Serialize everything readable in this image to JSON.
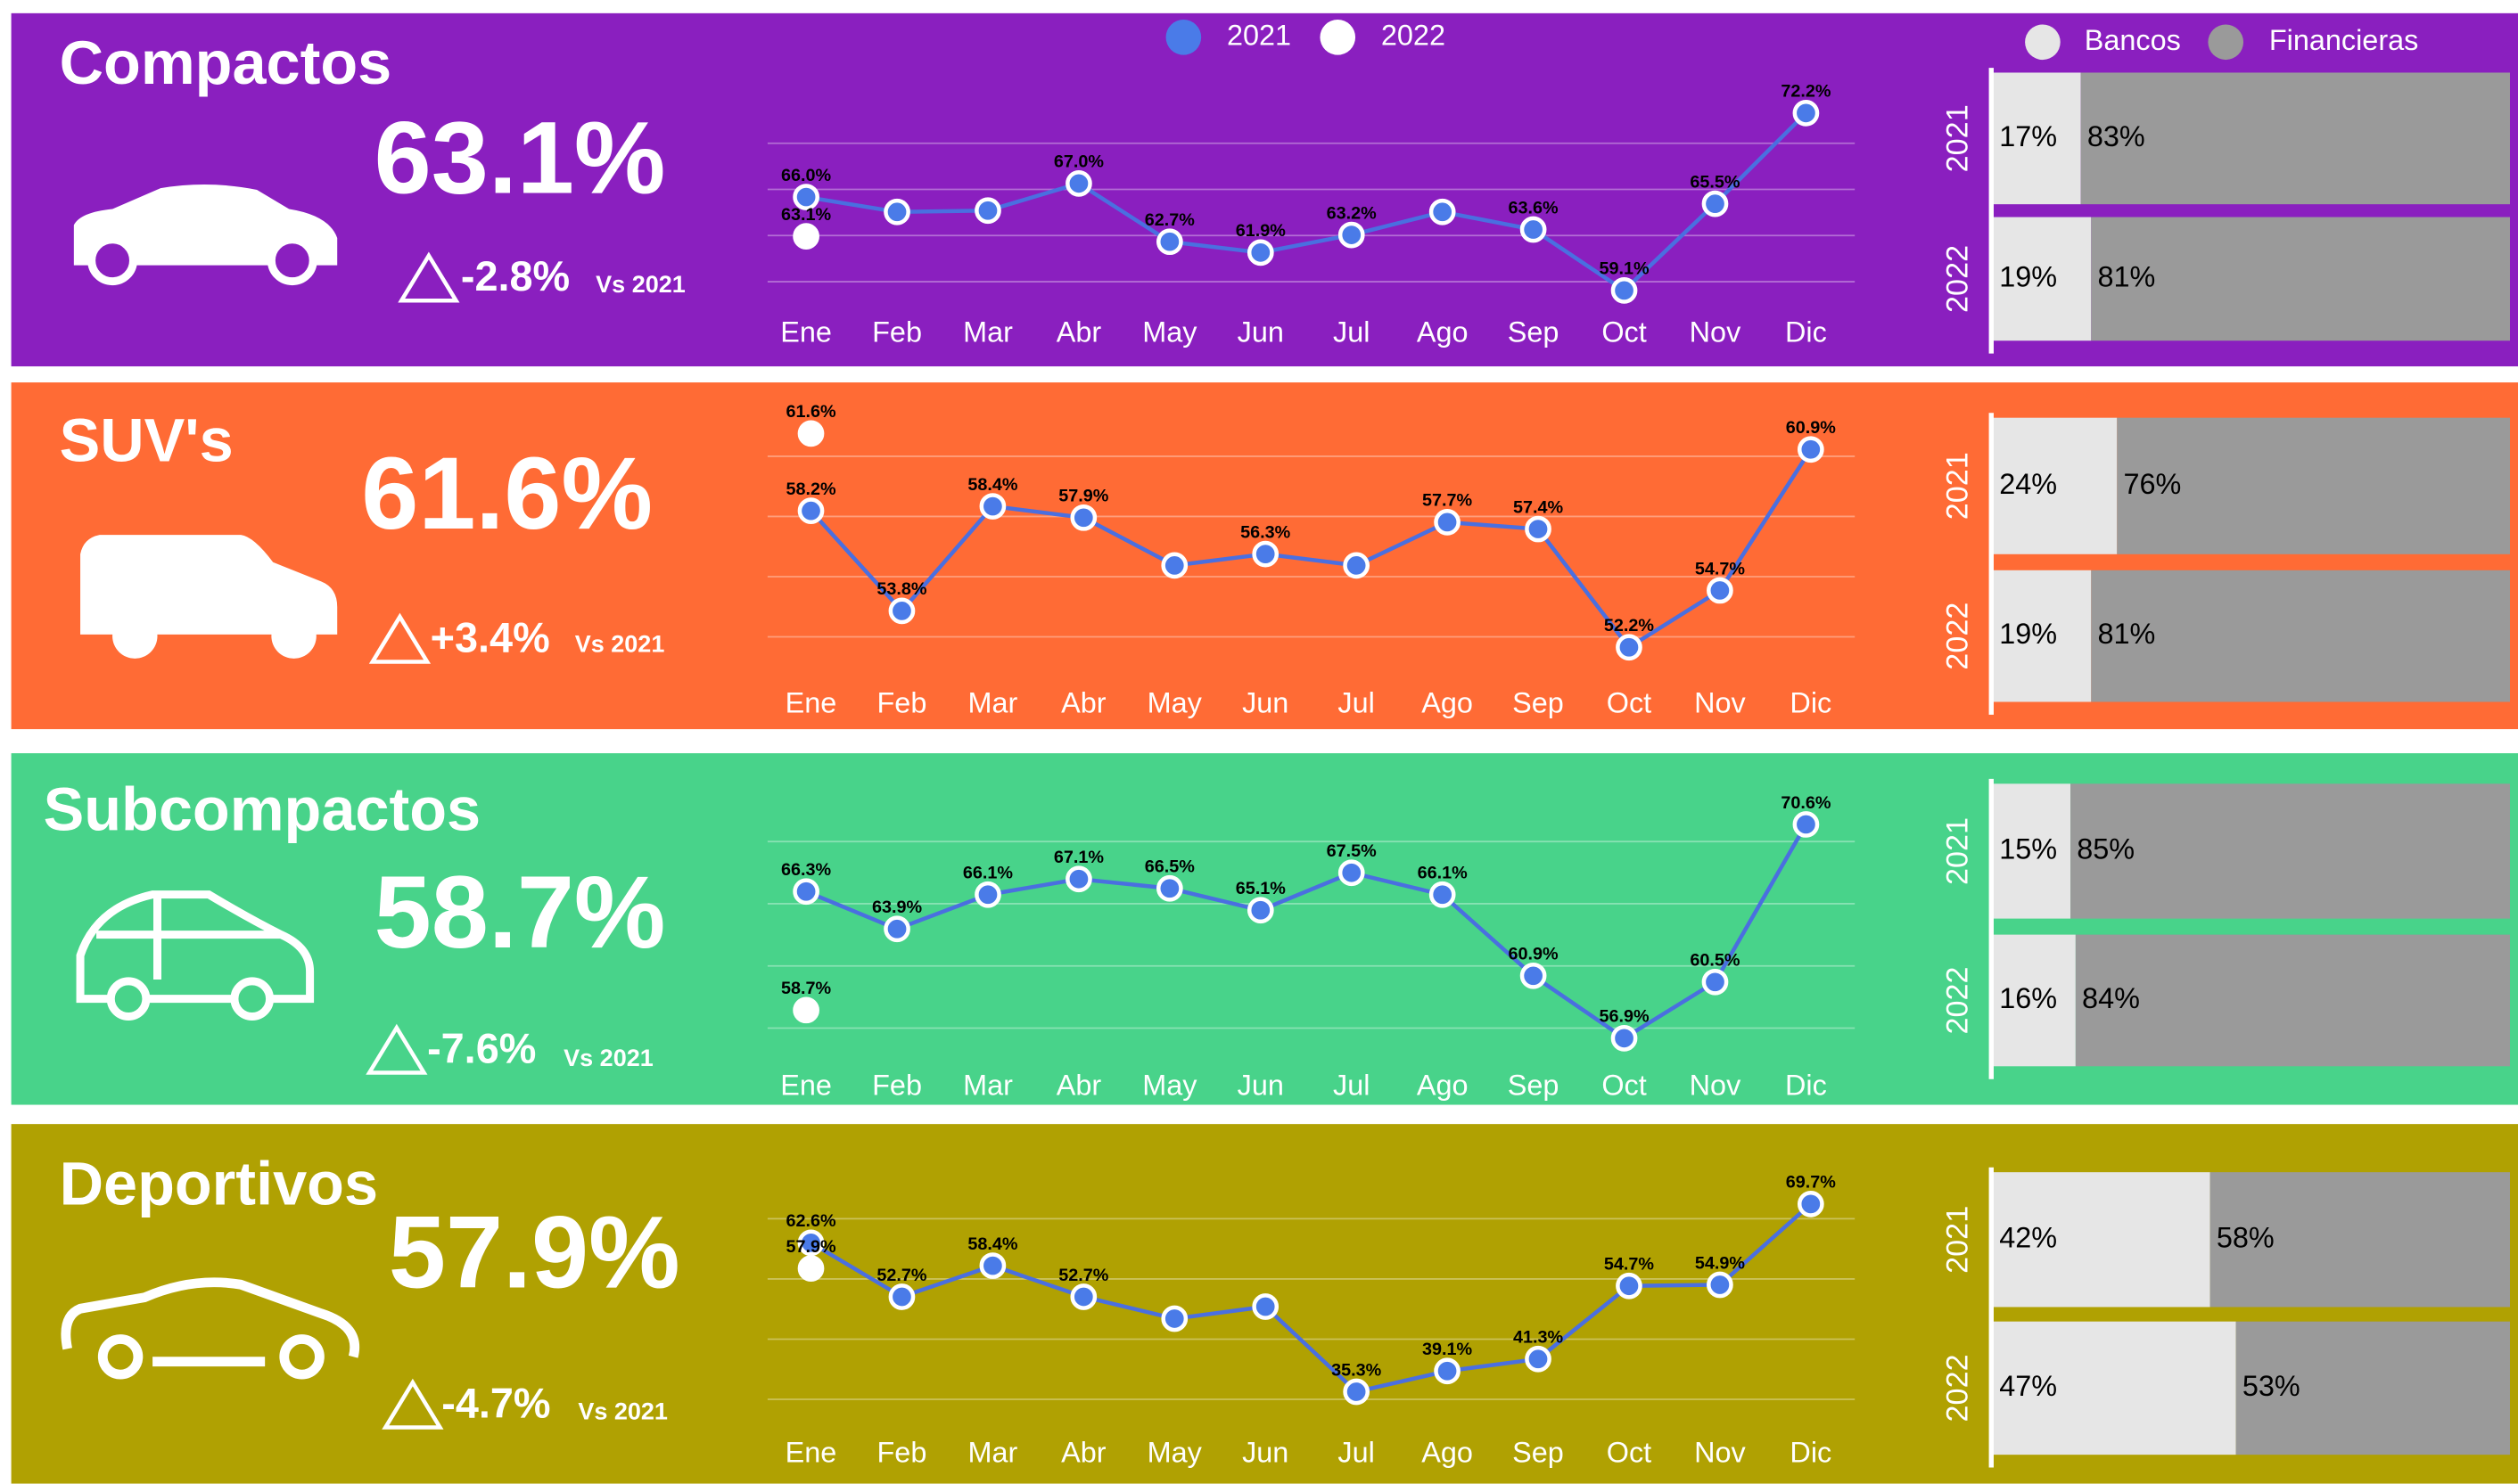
{
  "legend": {
    "line": [
      {
        "name": "2021",
        "color": "#4a7be8"
      },
      {
        "name": "2022",
        "color": "#ffffff"
      }
    ],
    "bar": [
      {
        "name": "Bancos",
        "color": "#e6e6e6"
      },
      {
        "name": "Financieras",
        "color": "#9a9a9a"
      }
    ]
  },
  "panels": [
    {
      "title": "Compactos",
      "color": "#8a1fbf",
      "kpi": "63.1%",
      "delta": "-2.8%",
      "vs": "Vs 2021",
      "chart_data": {
        "type": "line",
        "categories": [
          "Ene",
          "Feb",
          "Mar",
          "Abr",
          "May",
          "Jun",
          "Jul",
          "Ago",
          "Sep",
          "Oct",
          "Nov",
          "Dic"
        ],
        "ylim": [
          58,
          74
        ],
        "series": [
          {
            "values": [
              66.0,
              64.9,
              65.0,
              67.0,
              62.7,
              61.9,
              63.2,
              64.9,
              63.6,
              59.1,
              65.5,
              72.2
            ],
            "value_labels": [
              "66.0%",
              null,
              null,
              "67.0%",
              "62.7%",
              "61.9%",
              "63.2%",
              null,
              "63.6%",
              "59.1%",
              "65.5%",
              "72.2%"
            ]
          },
          {
            "values": [
              63.1,
              null,
              null,
              null,
              null,
              null,
              null,
              null,
              null,
              null,
              null,
              null
            ],
            "value_labels": [
              "63.1%",
              null,
              null,
              null,
              null,
              null,
              null,
              null,
              null,
              null,
              null,
              null
            ]
          }
        ]
      },
      "bar_chart": {
        "type": "stacked-bar",
        "categories": [
          "2021",
          "2022"
        ],
        "xlim": [
          0,
          100
        ],
        "series": [
          {
            "values": [
              17,
              19
            ],
            "value_labels": [
              "17%",
              "19%"
            ]
          },
          {
            "values": [
              83,
              81
            ],
            "value_labels": [
              "83%",
              "81%"
            ]
          }
        ]
      }
    },
    {
      "title": "SUV's",
      "color": "#ff6b35",
      "kpi": "61.6%",
      "delta": "+3.4%",
      "vs": "Vs 2021",
      "chart_data": {
        "type": "line",
        "categories": [
          "Ene",
          "Feb",
          "Mar",
          "Abr",
          "May",
          "Jun",
          "Jul",
          "Ago",
          "Sep",
          "Oct",
          "Nov",
          "Dic"
        ],
        "ylim": [
          51,
          63
        ],
        "series": [
          {
            "values": [
              58.2,
              53.8,
              58.4,
              57.9,
              55.8,
              56.3,
              55.8,
              57.7,
              57.4,
              52.2,
              54.7,
              60.9
            ],
            "value_labels": [
              "58.2%",
              "53.8%",
              "58.4%",
              "57.9%",
              null,
              "56.3%",
              null,
              "57.7%",
              "57.4%",
              "52.2%",
              "54.7%",
              "60.9%"
            ]
          },
          {
            "values": [
              61.6,
              null,
              null,
              null,
              null,
              null,
              null,
              null,
              null,
              null,
              null,
              null
            ],
            "value_labels": [
              "61.6%",
              null,
              null,
              null,
              null,
              null,
              null,
              null,
              null,
              null,
              null,
              null
            ]
          }
        ]
      },
      "bar_chart": {
        "type": "stacked-bar",
        "categories": [
          "2021",
          "2022"
        ],
        "xlim": [
          0,
          100
        ],
        "series": [
          {
            "values": [
              24,
              19
            ],
            "value_labels": [
              "24%",
              "19%"
            ]
          },
          {
            "values": [
              76,
              81
            ],
            "value_labels": [
              "76%",
              "81%"
            ]
          }
        ]
      }
    },
    {
      "title": "Subcompactos",
      "color": "#48d38a",
      "kpi": "58.7%",
      "delta": "-7.6%",
      "vs": "Vs 2021",
      "chart_data": {
        "type": "line",
        "categories": [
          "Ene",
          "Feb",
          "Mar",
          "Abr",
          "May",
          "Jun",
          "Jul",
          "Ago",
          "Sep",
          "Oct",
          "Nov",
          "Dic"
        ],
        "ylim": [
          55,
          73
        ],
        "series": [
          {
            "values": [
              66.3,
              63.9,
              66.1,
              67.1,
              66.5,
              65.1,
              67.5,
              66.1,
              60.9,
              56.9,
              60.5,
              70.6
            ],
            "value_labels": [
              "66.3%",
              "63.9%",
              "66.1%",
              "67.1%",
              "66.5%",
              "65.1%",
              "67.5%",
              "66.1%",
              "60.9%",
              "56.9%",
              "60.5%",
              "70.6%"
            ]
          },
          {
            "values": [
              58.7,
              null,
              null,
              null,
              null,
              null,
              null,
              null,
              null,
              null,
              null,
              null
            ],
            "value_labels": [
              "58.7%",
              null,
              null,
              null,
              null,
              null,
              null,
              null,
              null,
              null,
              null,
              null
            ]
          }
        ]
      },
      "bar_chart": {
        "type": "stacked-bar",
        "categories": [
          "2021",
          "2022"
        ],
        "xlim": [
          0,
          100
        ],
        "series": [
          {
            "values": [
              15,
              16
            ],
            "value_labels": [
              "15%",
              "16%"
            ]
          },
          {
            "values": [
              85,
              84
            ],
            "value_labels": [
              "85%",
              "84%"
            ]
          }
        ]
      }
    },
    {
      "title": "Deportivos",
      "color": "#b0a102",
      "kpi": "57.9%",
      "delta": "-4.7%",
      "vs": "Vs 2021",
      "chart_data": {
        "type": "line",
        "categories": [
          "Ene",
          "Feb",
          "Mar",
          "Abr",
          "May",
          "Jun",
          "Jul",
          "Ago",
          "Sep",
          "Oct",
          "Nov",
          "Dic"
        ],
        "ylim": [
          27,
          77
        ],
        "series": [
          {
            "values": [
              62.6,
              52.7,
              58.4,
              52.7,
              48.7,
              50.9,
              35.3,
              39.1,
              41.3,
              54.7,
              54.9,
              69.7
            ],
            "value_labels": [
              "62.6%",
              "52.7%",
              "58.4%",
              "52.7%",
              null,
              null,
              "35.3%",
              "39.1%",
              "41.3%",
              "54.7%",
              "54.9%",
              "69.7%"
            ]
          },
          {
            "values": [
              57.9,
              null,
              null,
              null,
              null,
              null,
              null,
              null,
              null,
              null,
              null,
              null
            ],
            "value_labels": [
              "57.9%",
              null,
              null,
              null,
              null,
              null,
              null,
              null,
              null,
              null,
              null,
              null
            ]
          }
        ]
      },
      "bar_chart": {
        "type": "stacked-bar",
        "categories": [
          "2021",
          "2022"
        ],
        "xlim": [
          0,
          100
        ],
        "series": [
          {
            "values": [
              42,
              47
            ],
            "value_labels": [
              "42%",
              "47%"
            ]
          },
          {
            "values": [
              58,
              53
            ],
            "value_labels": [
              "58%",
              "53%"
            ]
          }
        ]
      }
    }
  ]
}
